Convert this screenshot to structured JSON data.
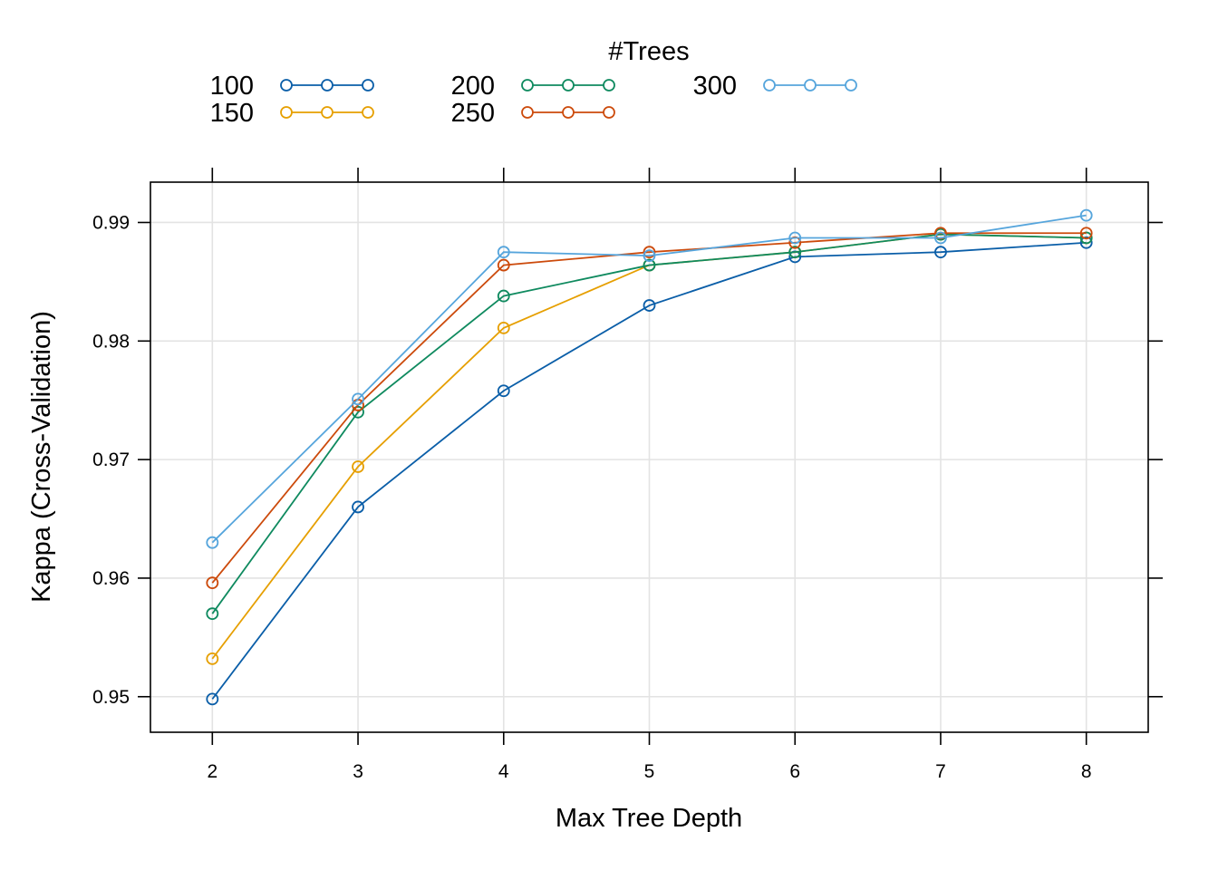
{
  "chart_data": {
    "type": "line",
    "xlabel": "Max Tree Depth",
    "ylabel": "Kappa (Cross-Validation)",
    "x": [
      2,
      3,
      4,
      5,
      6,
      7,
      8
    ],
    "xlim": [
      1.575,
      8.425
    ],
    "ylim": [
      0.947,
      0.9934
    ],
    "x_ticks": [
      "2",
      "3",
      "4",
      "5",
      "6",
      "7",
      "8"
    ],
    "y_ticks": [
      0.95,
      0.96,
      0.97,
      0.98,
      0.99
    ],
    "y_tick_labels": [
      "0.95",
      "0.96",
      "0.97",
      "0.98",
      "0.99"
    ],
    "grid": true,
    "legend": {
      "title": "#Trees",
      "placement": "top"
    },
    "series": [
      {
        "name": "100",
        "color": "#0a5ea8",
        "values": [
          0.9498,
          0.966,
          0.9758,
          0.983,
          0.9871,
          0.9875,
          0.9883
        ]
      },
      {
        "name": "150",
        "color": "#e69f00",
        "values": [
          0.9532,
          0.9694,
          0.9811,
          0.9864,
          0.9875,
          0.989,
          0.9887
        ]
      },
      {
        "name": "200",
        "color": "#0f8a5f",
        "values": [
          0.957,
          0.974,
          0.9838,
          0.9864,
          0.9875,
          0.989,
          0.9887
        ]
      },
      {
        "name": "250",
        "color": "#cc4a0b",
        "values": [
          0.9596,
          0.9746,
          0.9864,
          0.9875,
          0.9883,
          0.9891,
          0.9891
        ]
      },
      {
        "name": "300",
        "color": "#56a5dc",
        "values": [
          0.963,
          0.9751,
          0.9875,
          0.9872,
          0.9887,
          0.9887,
          0.9906
        ]
      }
    ]
  }
}
